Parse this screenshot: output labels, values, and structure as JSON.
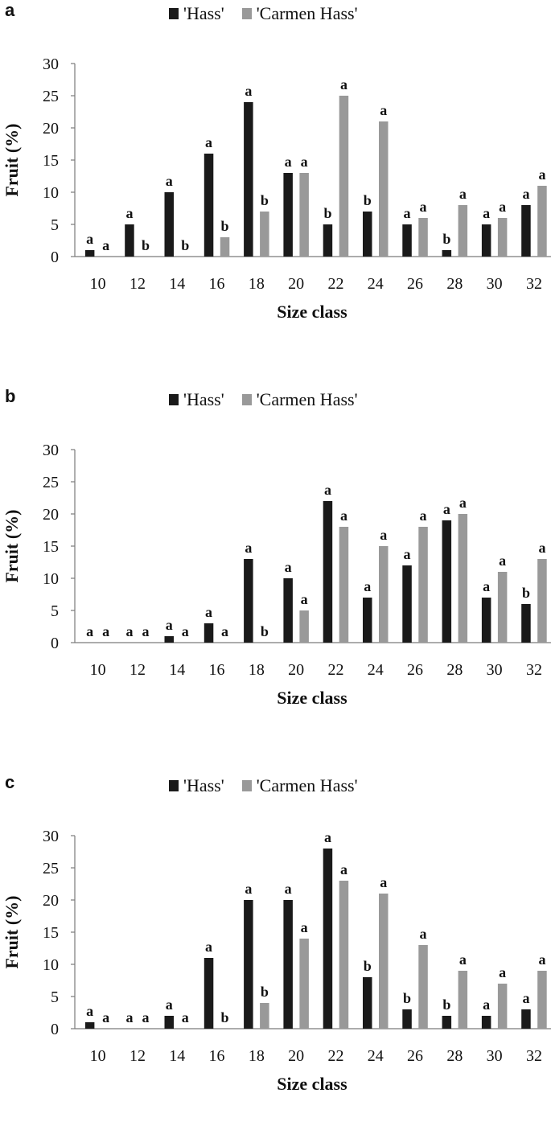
{
  "colors": {
    "hass": "#1a1a1a",
    "carmen": "#999999",
    "axis": "#7a7a7a"
  },
  "chart_data": [
    {
      "type": "bar",
      "panel_label": "a",
      "categories": [
        "10",
        "12",
        "14",
        "16",
        "18",
        "20",
        "22",
        "24",
        "26",
        "28",
        "30",
        "32"
      ],
      "series": [
        {
          "name": "'Hass'",
          "values": [
            1,
            5,
            10,
            16,
            24,
            13,
            5,
            7,
            5,
            1,
            5,
            8
          ],
          "letters": [
            "a",
            "a",
            "a",
            "a",
            "a",
            "a",
            "b",
            "b",
            "a",
            "b",
            "a",
            "a"
          ]
        },
        {
          "name": "'Carmen Hass'",
          "values": [
            0,
            0,
            0,
            3,
            7,
            13,
            25,
            21,
            6,
            8,
            6,
            11
          ],
          "letters": [
            "a",
            "b",
            "b",
            "b",
            "b",
            "a",
            "a",
            "a",
            "a",
            "a",
            "a",
            "a"
          ]
        }
      ],
      "xlabel": "Size class",
      "ylabel": "Fruit (%)",
      "ylim": [
        0,
        30
      ],
      "yticks": [
        "0",
        "5",
        "10",
        "15",
        "20",
        "25",
        "30"
      ],
      "grid": false,
      "legend": "top"
    },
    {
      "type": "bar",
      "panel_label": "b",
      "categories": [
        "10",
        "12",
        "14",
        "16",
        "18",
        "20",
        "22",
        "24",
        "26",
        "28",
        "30",
        "32"
      ],
      "series": [
        {
          "name": "'Hass'",
          "values": [
            0,
            0,
            1,
            3,
            13,
            10,
            22,
            7,
            12,
            19,
            7,
            6
          ],
          "letters": [
            "a",
            "a",
            "a",
            "a",
            "a",
            "a",
            "a",
            "a",
            "a",
            "a",
            "a",
            "b"
          ]
        },
        {
          "name": "'Carmen Hass'",
          "values": [
            0,
            0,
            0,
            0,
            0,
            5,
            18,
            15,
            18,
            20,
            11,
            13
          ],
          "letters": [
            "a",
            "a",
            "a",
            "a",
            "b",
            "a",
            "a",
            "a",
            "a",
            "a",
            "a",
            "a"
          ]
        }
      ],
      "xlabel": "Size class",
      "ylabel": "Fruit (%)",
      "ylim": [
        0,
        30
      ],
      "yticks": [
        "0",
        "5",
        "10",
        "15",
        "20",
        "25",
        "30"
      ],
      "grid": false,
      "legend": "top"
    },
    {
      "type": "bar",
      "panel_label": "c",
      "categories": [
        "10",
        "12",
        "14",
        "16",
        "18",
        "20",
        "22",
        "24",
        "26",
        "28",
        "30",
        "32"
      ],
      "series": [
        {
          "name": "'Hass'",
          "values": [
            1,
            0,
            2,
            11,
            20,
            20,
            28,
            8,
            3,
            2,
            2,
            3
          ],
          "letters": [
            "a",
            "a",
            "a",
            "a",
            "a",
            "a",
            "a",
            "b",
            "b",
            "b",
            "a",
            "a"
          ]
        },
        {
          "name": "'Carmen Hass'",
          "values": [
            0,
            0,
            0,
            0,
            4,
            14,
            23,
            21,
            13,
            9,
            7,
            9
          ],
          "letters": [
            "a",
            "a",
            "a",
            "b",
            "b",
            "a",
            "a",
            "a",
            "a",
            "a",
            "a",
            "a"
          ]
        }
      ],
      "xlabel": "Size class",
      "ylabel": "Fruit (%)",
      "ylim": [
        0,
        30
      ],
      "yticks": [
        "0",
        "5",
        "10",
        "15",
        "20",
        "25",
        "30"
      ],
      "grid": false,
      "legend": "top"
    }
  ]
}
